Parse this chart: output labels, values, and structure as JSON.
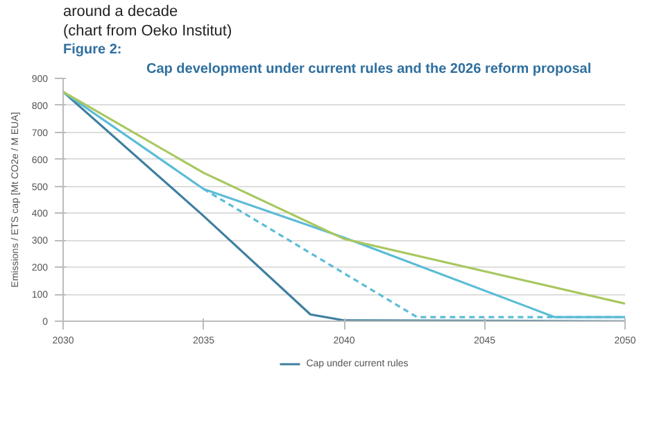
{
  "chart_data": {
    "type": "line",
    "title": "Cap development under current rules and the 2026 reform proposal",
    "annotations": [
      "around a decade",
      "(chart from Oeko Institut)",
      "Figure 2:"
    ],
    "ylabel": "Emissions / ETS cap [Mt CO2e / M EUA]",
    "xlim": [
      2030,
      2050
    ],
    "xticks": [
      2030,
      2035,
      2040,
      2045,
      2050
    ],
    "ylim": [
      0,
      900
    ],
    "yticks": [
      0,
      100,
      200,
      300,
      400,
      500,
      600,
      700,
      800,
      900
    ],
    "grid": "y",
    "legend": "bottom",
    "series": [
      {
        "name": "Cap under current rules",
        "color": "#3f7f9f",
        "x": [
          2030,
          2035,
          2038.8,
          2040,
          2050
        ],
        "values": [
          850,
          390,
          25,
          3,
          0
        ]
      },
      {
        "color": "#5bbcd6",
        "x": [
          2030,
          2035,
          2040,
          2047.5,
          2050
        ],
        "values": [
          850,
          490,
          310,
          15,
          15
        ]
      },
      {
        "color": "#5bbcd6",
        "line_style": "dashed",
        "x": [
          2035,
          2042.6,
          2050
        ],
        "values": [
          490,
          15,
          15
        ]
      },
      {
        "color": "#a9c760",
        "x": [
          2030,
          2035,
          2040,
          2050
        ],
        "values": [
          850,
          550,
          305,
          65
        ]
      }
    ]
  }
}
